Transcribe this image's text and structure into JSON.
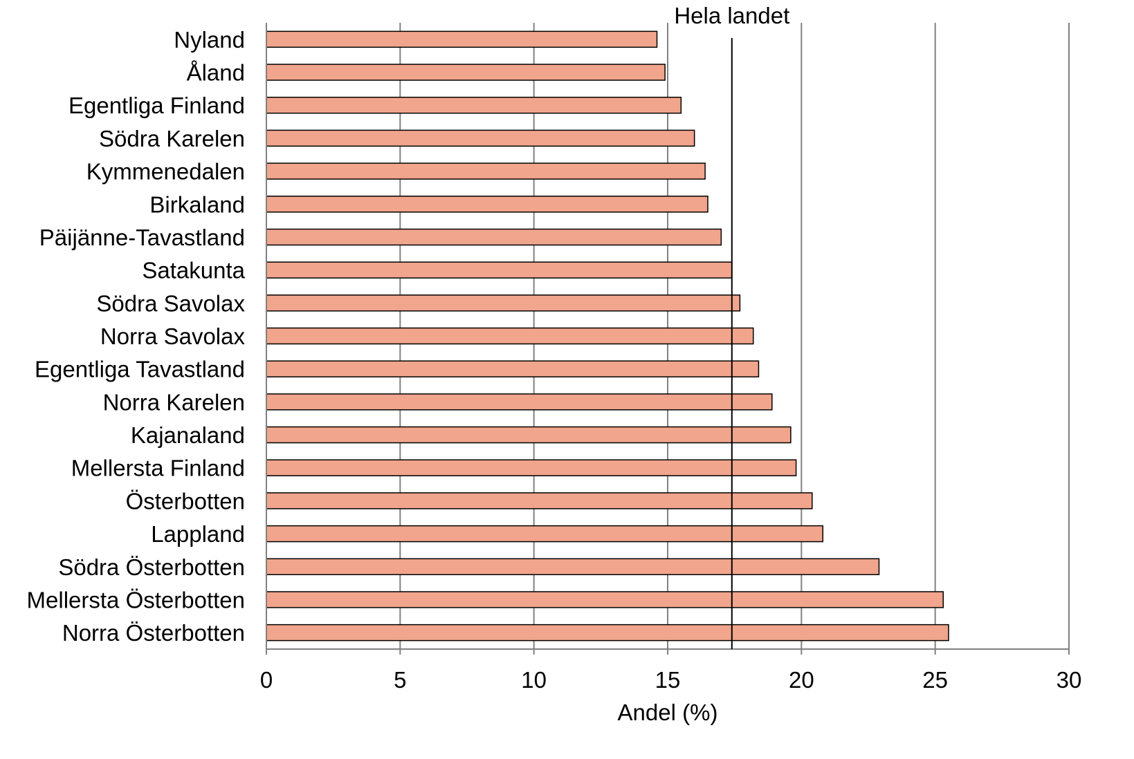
{
  "chart_data": {
    "type": "bar",
    "orientation": "horizontal",
    "categories": [
      "Nyland",
      "Åland",
      "Egentliga Finland",
      "Södra Karelen",
      "Kymmenedalen",
      "Birkaland",
      "Päijänne-Tavastland",
      "Satakunta",
      "Södra Savolax",
      "Norra Savolax",
      "Egentliga Tavastland",
      "Norra Karelen",
      "Kajanaland",
      "Mellersta Finland",
      "Österbotten",
      "Lappland",
      "Södra Österbotten",
      "Mellersta Österbotten",
      "Norra Österbotten"
    ],
    "values": [
      14.6,
      14.9,
      15.5,
      16.0,
      16.4,
      16.5,
      17.0,
      17.4,
      17.7,
      18.2,
      18.4,
      18.9,
      19.6,
      19.8,
      20.4,
      20.8,
      22.9,
      25.3,
      25.5
    ],
    "xlabel": "Andel (%)",
    "ylabel": "",
    "xlim": [
      0,
      30
    ],
    "xticks": [
      0,
      5,
      10,
      15,
      20,
      25,
      30
    ],
    "reference_line": {
      "label": "Hela landet",
      "value": 17.4
    },
    "grid": true,
    "bar_color": "#f0a58c",
    "bar_edge_color": "#000000",
    "grid_color": "#808080",
    "reference_line_color": "#000000"
  }
}
